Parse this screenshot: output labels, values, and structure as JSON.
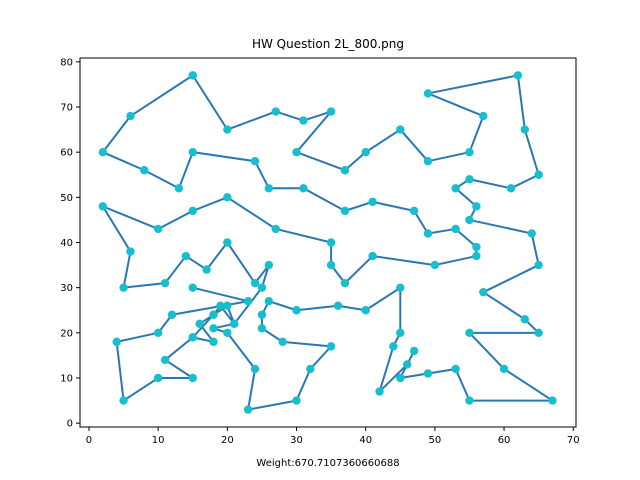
{
  "chart_data": {
    "type": "line",
    "title": "HW Question 2L_800.png",
    "xlabel": "Weight:670.7107360660688",
    "ylabel": "",
    "xlim": [
      -1.3,
      70.4
    ],
    "ylim": [
      -0.85,
      80.85
    ],
    "x_ticks": [
      0,
      10,
      20,
      30,
      40,
      50,
      60,
      70
    ],
    "y_ticks": [
      0,
      10,
      20,
      30,
      40,
      50,
      60,
      70,
      80
    ],
    "grid": false,
    "colors": {
      "line": "#2a77b4",
      "marker": "#17becf"
    },
    "series": [
      {
        "values": [
          [
            15,
            77
          ],
          [
            20,
            65
          ],
          [
            27,
            69
          ],
          [
            31,
            67
          ],
          [
            35,
            69
          ],
          [
            30,
            60
          ],
          [
            37,
            56
          ],
          [
            40,
            60
          ],
          [
            45,
            65
          ],
          [
            49,
            58
          ],
          [
            55,
            60
          ],
          [
            57,
            68
          ],
          [
            49,
            73
          ],
          [
            62,
            77
          ],
          [
            63,
            65
          ],
          [
            65,
            55
          ],
          [
            61,
            52
          ],
          [
            55,
            54
          ],
          [
            53,
            52
          ],
          [
            56,
            48
          ],
          [
            55,
            45
          ],
          [
            64,
            42
          ],
          [
            65,
            35
          ],
          [
            57,
            29
          ],
          [
            63,
            23
          ],
          [
            65,
            20
          ],
          [
            55,
            20
          ],
          [
            60,
            12
          ],
          [
            67,
            5
          ],
          [
            55,
            5
          ],
          [
            53,
            12
          ],
          [
            49,
            11
          ],
          [
            45,
            10
          ],
          [
            47,
            16
          ],
          [
            46,
            13
          ],
          [
            42,
            7
          ],
          [
            44,
            17
          ],
          [
            45,
            20
          ],
          [
            45,
            30
          ],
          [
            40,
            25
          ],
          [
            36,
            26
          ],
          [
            30,
            25
          ],
          [
            26,
            27
          ],
          [
            25,
            24
          ],
          [
            25,
            21
          ],
          [
            28,
            18
          ],
          [
            35,
            17
          ],
          [
            32,
            12
          ],
          [
            30,
            5
          ],
          [
            23,
            3
          ],
          [
            24,
            12
          ],
          [
            20,
            20
          ],
          [
            18,
            21
          ],
          [
            21,
            22
          ],
          [
            19,
            26
          ],
          [
            18,
            24
          ],
          [
            15,
            19
          ],
          [
            18,
            18
          ],
          [
            16,
            22
          ],
          [
            20,
            26
          ],
          [
            21,
            22
          ],
          [
            25,
            30
          ],
          [
            26,
            35
          ],
          [
            24,
            31
          ],
          [
            20,
            40
          ],
          [
            17,
            34
          ],
          [
            14,
            37
          ],
          [
            11,
            31
          ],
          [
            5,
            30
          ],
          [
            6,
            38
          ],
          [
            2,
            48
          ],
          [
            10,
            43
          ],
          [
            15,
            47
          ],
          [
            20,
            50
          ],
          [
            27,
            43
          ],
          [
            35,
            40
          ],
          [
            35,
            35
          ],
          [
            37,
            31
          ],
          [
            41,
            37
          ],
          [
            50,
            35
          ],
          [
            56,
            37
          ],
          [
            56,
            39
          ],
          [
            53,
            43
          ],
          [
            49,
            42
          ],
          [
            47,
            47
          ],
          [
            41,
            49
          ],
          [
            37,
            47
          ],
          [
            31,
            52
          ],
          [
            26,
            52
          ],
          [
            24,
            58
          ],
          [
            15,
            60
          ],
          [
            13,
            52
          ],
          [
            8,
            56
          ],
          [
            2,
            60
          ],
          [
            6,
            68
          ],
          [
            15,
            77
          ]
        ]
      },
      {
        "values": [
          [
            15,
            30
          ],
          [
            23,
            27
          ],
          [
            12,
            24
          ],
          [
            10,
            20
          ],
          [
            4,
            18
          ],
          [
            5,
            5
          ],
          [
            10,
            10
          ],
          [
            15,
            10
          ],
          [
            11,
            14
          ],
          [
            15,
            19
          ]
        ]
      }
    ]
  }
}
